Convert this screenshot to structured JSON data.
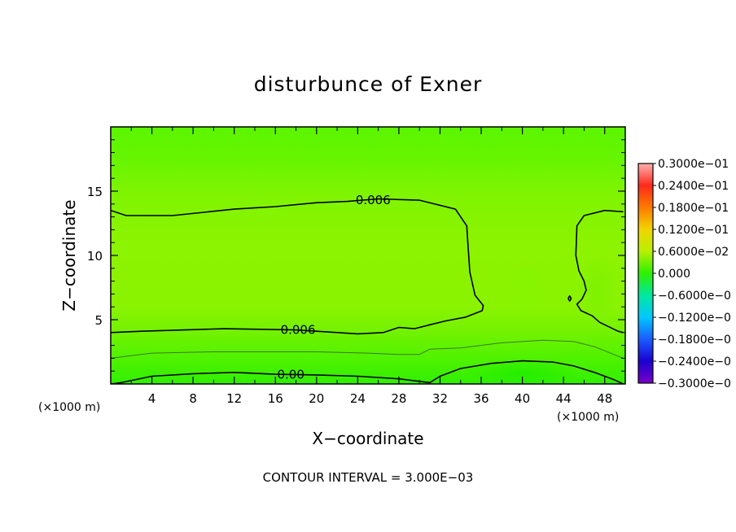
{
  "chart_data": {
    "type": "contour",
    "title": "disturbunce of Exner",
    "xlabel": "X−coordinate",
    "ylabel": "Z−coordinate",
    "x_unit": "(×1000 m)",
    "y_unit": "(×1000 m)",
    "xlim": [
      0,
      50
    ],
    "ylim": [
      0,
      20
    ],
    "x_ticks": [
      "4",
      "8",
      "12",
      "16",
      "20",
      "24",
      "28",
      "32",
      "36",
      "40",
      "44",
      "48"
    ],
    "y_ticks": [
      "5",
      "10",
      "15"
    ],
    "contour_interval_text": "CONTOUR INTERVAL = 3.000E−03",
    "contour_interval": 0.003,
    "contour_labels": [
      "0.006",
      "0.006",
      "0.00"
    ],
    "colorbar": {
      "labels": [
        "0.3000e−01",
        "0.2400e−01",
        "0.1800e−01",
        "0.1200e−01",
        "0.6000e−02",
        "0.000",
        "−0.6000e−0",
        "−0.1200e−0",
        "−0.1800e−0",
        "−0.2400e−0",
        "−0.3000e−0"
      ],
      "values": [
        0.03,
        0.024,
        0.018,
        0.012,
        0.006,
        0.0,
        -0.006,
        -0.012,
        -0.018,
        -0.024,
        -0.03
      ],
      "colors": [
        "#ffb0b0",
        "#ff2a1a",
        "#ff7a00",
        "#f2d400",
        "#b8f000",
        "#2df000",
        "#00e8a0",
        "#00c8ff",
        "#1a5cff",
        "#1a00d0",
        "#7a00c8"
      ]
    },
    "contours": [
      {
        "level": 0.006,
        "label": "0.006",
        "points": [
          [
            0,
            13.5
          ],
          [
            1.5,
            13.1
          ],
          [
            6,
            13.1
          ],
          [
            12,
            13.6
          ],
          [
            16,
            13.8
          ],
          [
            20,
            14.1
          ],
          [
            23,
            14.2
          ],
          [
            26,
            14.4
          ],
          [
            30,
            14.3
          ],
          [
            33.5,
            13.6
          ],
          [
            34.6,
            12.3
          ],
          [
            34.7,
            11.0
          ],
          [
            34.9,
            8.7
          ],
          [
            35.4,
            6.9
          ],
          [
            36.2,
            6.1
          ],
          [
            36.1,
            5.7
          ],
          [
            34.5,
            5.2
          ],
          [
            32.5,
            4.9
          ],
          [
            31,
            4.6
          ],
          [
            29.5,
            4.3
          ],
          [
            28,
            4.4
          ],
          [
            26.5,
            4.0
          ],
          [
            24,
            3.9
          ],
          [
            18,
            4.2
          ],
          [
            11,
            4.3
          ],
          [
            3,
            4.1
          ],
          [
            0,
            4.0
          ]
        ]
      },
      {
        "level": 0.006,
        "label": "",
        "points": [
          [
            49.8,
            13.4
          ],
          [
            48,
            13.5
          ],
          [
            46,
            13.1
          ],
          [
            45.3,
            12.3
          ],
          [
            45.2,
            10.0
          ],
          [
            45.5,
            8.8
          ],
          [
            46,
            8.0
          ],
          [
            46.2,
            7.3
          ],
          [
            45.8,
            6.6
          ],
          [
            45.3,
            6.2
          ],
          [
            45.7,
            5.7
          ],
          [
            46.8,
            5.3
          ],
          [
            47.5,
            4.8
          ],
          [
            49.3,
            4.1
          ],
          [
            49.8,
            4.0
          ]
        ]
      },
      {
        "level": 0.006,
        "label": "",
        "points": [
          [
            44.45,
            6.65
          ],
          [
            44.6,
            6.85
          ],
          [
            44.75,
            6.65
          ],
          [
            44.6,
            6.45
          ],
          [
            44.45,
            6.65
          ]
        ]
      },
      {
        "level": 0.003,
        "label": "",
        "points": [
          [
            0,
            2.0
          ],
          [
            4,
            2.4
          ],
          [
            10,
            2.5
          ],
          [
            16,
            2.5
          ],
          [
            20,
            2.5
          ],
          [
            25,
            2.4
          ],
          [
            28,
            2.3
          ],
          [
            30,
            2.3
          ],
          [
            31,
            2.7
          ],
          [
            34,
            2.8
          ],
          [
            38,
            3.2
          ],
          [
            42,
            3.4
          ],
          [
            45,
            3.3
          ],
          [
            47,
            2.9
          ],
          [
            49.8,
            2.0
          ]
        ]
      },
      {
        "level": 0.0,
        "label": "0.00",
        "points": [
          [
            0,
            0.0
          ],
          [
            1,
            0.1
          ],
          [
            4,
            0.6
          ],
          [
            8,
            0.8
          ],
          [
            12,
            0.9
          ],
          [
            16,
            0.75
          ],
          [
            20,
            0.7
          ],
          [
            24,
            0.6
          ],
          [
            28,
            0.4
          ],
          [
            30,
            0.2
          ],
          [
            31,
            0.1
          ],
          [
            32,
            0.6
          ],
          [
            34,
            1.2
          ],
          [
            37,
            1.6
          ],
          [
            40,
            1.8
          ],
          [
            43,
            1.7
          ],
          [
            45,
            1.4
          ],
          [
            47,
            0.9
          ],
          [
            49,
            0.3
          ],
          [
            49.8,
            0.0
          ]
        ]
      }
    ],
    "field_regions": [
      {
        "y0": 15.5,
        "y1": 20,
        "value": 0.003,
        "color": "#5cf600"
      },
      {
        "y0": 11.0,
        "y1": 17.5,
        "value": 0.0055,
        "color": "#78f400"
      },
      {
        "y0": 4.5,
        "y1": 13.0,
        "value": 0.0072,
        "color": "#8ef300"
      },
      {
        "y0": 2.3,
        "y1": 4.2,
        "value": 0.005,
        "color": "#72f200"
      },
      {
        "y0": 0.8,
        "y1": 2.5,
        "value": 0.002,
        "color": "#4ef200"
      },
      {
        "y0": 0.0,
        "y1": 1.0,
        "value": 0.0005,
        "color": "#30ef00"
      }
    ]
  }
}
